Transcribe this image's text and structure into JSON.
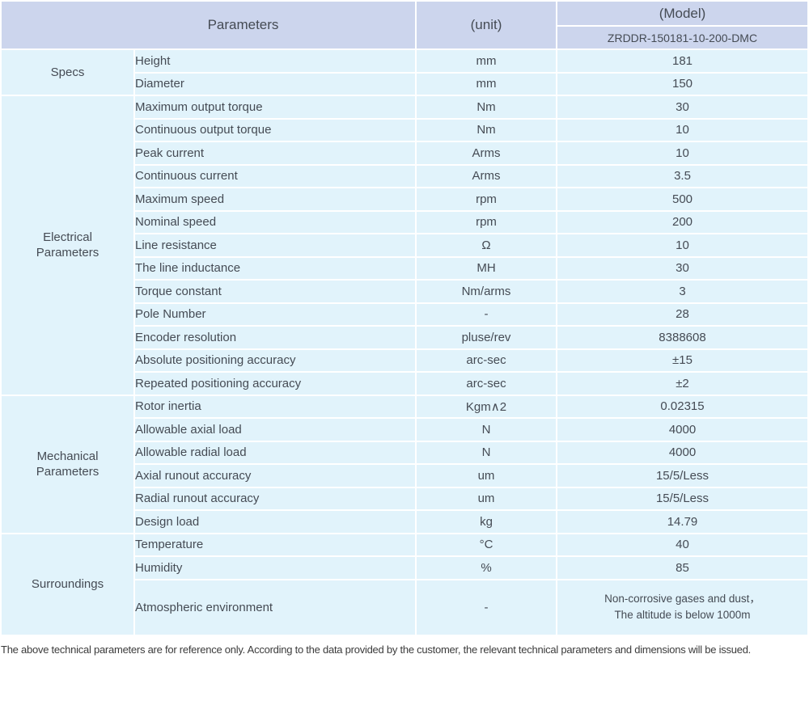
{
  "header": {
    "parameters_label": "Parameters",
    "unit_label": "(unit)",
    "model_label": "(Model)",
    "model_value": "ZRDDR-150181-10-200-DMC"
  },
  "sections": [
    {
      "name_lines": [
        "Specs"
      ],
      "rows": [
        {
          "param": "Height",
          "unit": "mm",
          "value": "181"
        },
        {
          "param": "Diameter",
          "unit": "mm",
          "value": "150"
        }
      ]
    },
    {
      "name_lines": [
        "Electrical",
        "Parameters"
      ],
      "rows": [
        {
          "param": "Maximum output torque",
          "unit": "Nm",
          "value": "30"
        },
        {
          "param": "Continuous output torque",
          "unit": "Nm",
          "value": "10"
        },
        {
          "param": "Peak current",
          "unit": "Arms",
          "value": "10"
        },
        {
          "param": "Continuous current",
          "unit": "Arms",
          "value": "3.5"
        },
        {
          "param": "Maximum speed",
          "unit": "rpm",
          "value": "500"
        },
        {
          "param": "Nominal speed",
          "unit": "rpm",
          "value": "200"
        },
        {
          "param": "Line resistance",
          "unit": "Ω",
          "value": "10"
        },
        {
          "param": "The line inductance",
          "unit": "MH",
          "value": "30"
        },
        {
          "param": "Torque constant",
          "unit": "Nm/arms",
          "value": "3"
        },
        {
          "param": "Pole Number",
          "unit": "-",
          "value": "28"
        },
        {
          "param": "Encoder resolution",
          "unit": "pluse/rev",
          "value": "8388608"
        },
        {
          "param": "Absolute positioning accuracy",
          "unit": "arc-sec",
          "value": "±15"
        },
        {
          "param": "Repeated positioning accuracy",
          "unit": "arc-sec",
          "value": "±2"
        }
      ]
    },
    {
      "name_lines": [
        "Mechanical",
        "Parameters"
      ],
      "rows": [
        {
          "param": "Rotor inertia",
          "unit": "Kgm∧2",
          "value": "0.02315"
        },
        {
          "param": "Allowable axial load",
          "unit": "N",
          "value": "4000"
        },
        {
          "param": "Allowable radial load",
          "unit": "N",
          "value": "4000"
        },
        {
          "param": "Axial runout accuracy",
          "unit": "um",
          "value": "15/5/Less"
        },
        {
          "param": "Radial runout accuracy",
          "unit": "um",
          "value": "15/5/Less"
        },
        {
          "param": "Design load",
          "unit": "kg",
          "value": "14.79"
        }
      ]
    },
    {
      "name_lines": [
        "Surroundings"
      ],
      "rows": [
        {
          "param": "Temperature",
          "unit": "°C",
          "value": "40"
        },
        {
          "param": "Humidity",
          "unit": "%",
          "value": "85"
        },
        {
          "param": "Atmospheric environment",
          "unit": "-",
          "value_lines": [
            "Non-corrosive gases and dust，",
            "The altitude is below 1000m"
          ]
        }
      ]
    }
  ],
  "footnote": "The above technical parameters are for reference only. According to the data provided by the customer, the relevant technical parameters and dimensions will be issued.",
  "colors": {
    "header_bg": "#ccd5ed",
    "body_bg": "#e1f3fb",
    "border": "#ffffff",
    "table_text": "#454b54",
    "footnote_text": "#3b3b3b"
  }
}
